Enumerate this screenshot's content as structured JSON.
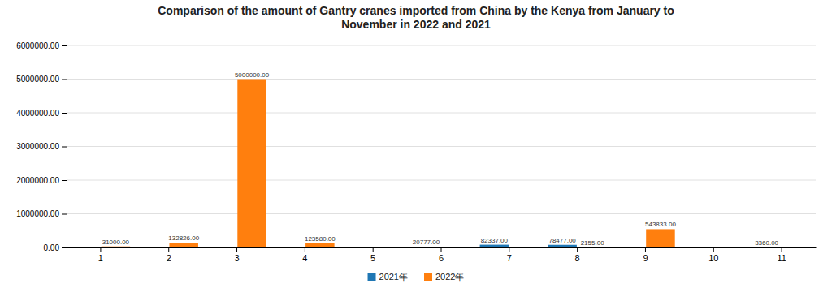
{
  "chart_data": {
    "type": "bar",
    "title": "Comparison of the amount of Gantry cranes imported from China by the Kenya from January to\nNovember in 2022 and 2021",
    "categories": [
      "1",
      "2",
      "3",
      "4",
      "5",
      "6",
      "7",
      "8",
      "9",
      "10",
      "11"
    ],
    "series": [
      {
        "name": "2021年",
        "values": [
          0,
          0,
          0,
          0,
          0,
          20777,
          82337,
          78477,
          0,
          0,
          3360
        ],
        "value_labels": [
          null,
          null,
          null,
          null,
          null,
          "20777.00",
          "82337.00",
          "78477.00",
          null,
          null,
          "3360.00"
        ]
      },
      {
        "name": "2022年",
        "values": [
          31000,
          132826,
          5000000,
          123580,
          0,
          0,
          0,
          2155,
          543833,
          0,
          0
        ],
        "value_labels": [
          "31000.00",
          "132826.00",
          "5000000.00",
          "123580.00",
          null,
          null,
          null,
          "2155.00",
          "543833.00",
          null,
          null
        ]
      }
    ],
    "ylim": [
      0,
      6000000
    ],
    "yticks": [
      {
        "value": 0,
        "label": "0.00"
      },
      {
        "value": 1000000,
        "label": "1000000.00"
      },
      {
        "value": 2000000,
        "label": "2000000.00"
      },
      {
        "value": 3000000,
        "label": "3000000.00"
      },
      {
        "value": 4000000,
        "label": "4000000.00"
      },
      {
        "value": 5000000,
        "label": "5000000.00"
      },
      {
        "value": 6000000,
        "label": "6000000.00"
      }
    ],
    "grid": true,
    "legend": "bottom",
    "data_labels": true
  }
}
